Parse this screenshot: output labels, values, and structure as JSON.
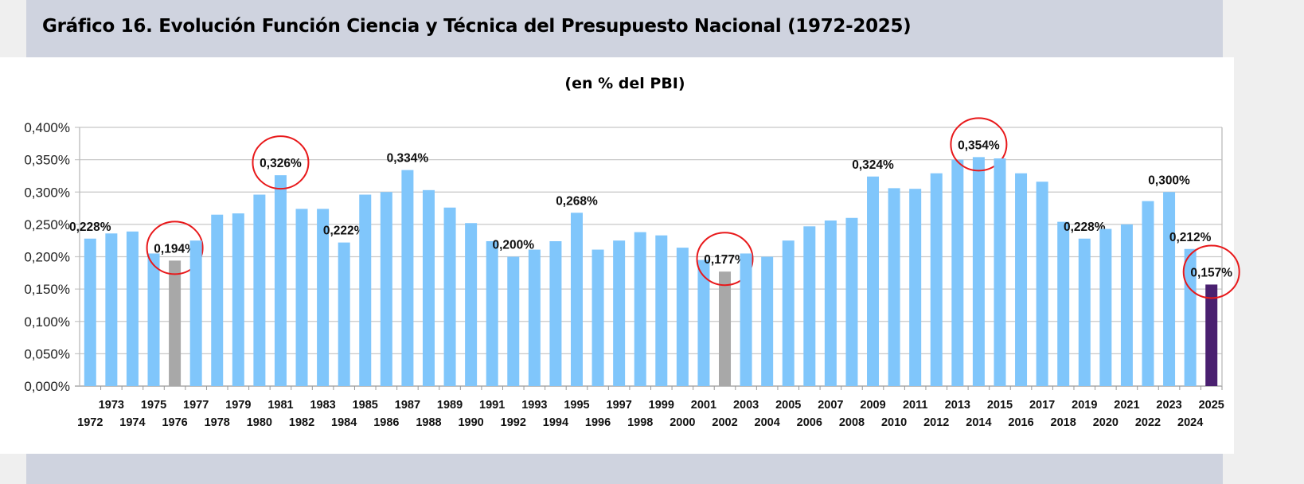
{
  "title": "Gráfico 16. Evolución Función Ciencia y Técnica del Presupuesto Nacional (1972-2025)",
  "chart_data": {
    "type": "bar",
    "title": "Gráfico 16. Evolución Función Ciencia y Técnica del Presupuesto Nacional (1972-2025)",
    "subtitle": "(en % del PBI)",
    "xlabel": "",
    "ylabel": "",
    "ylim": [
      0,
      0.4
    ],
    "yticks": [
      "0,000%",
      "0,050%",
      "0,100%",
      "0,150%",
      "0,200%",
      "0,250%",
      "0,300%",
      "0,350%",
      "0,400%"
    ],
    "grid": true,
    "categories": [
      "1972",
      "1973",
      "1974",
      "1975",
      "1976",
      "1977",
      "1978",
      "1979",
      "1980",
      "1981",
      "1982",
      "1983",
      "1984",
      "1985",
      "1986",
      "1987",
      "1988",
      "1989",
      "1990",
      "1991",
      "1992",
      "1993",
      "1994",
      "1995",
      "1996",
      "1997",
      "1998",
      "1999",
      "2000",
      "2001",
      "2002",
      "2003",
      "2004",
      "2005",
      "2006",
      "2007",
      "2008",
      "2009",
      "2010",
      "2011",
      "2012",
      "2013",
      "2014",
      "2015",
      "2016",
      "2017",
      "2018",
      "2019",
      "2020",
      "2021",
      "2022",
      "2023",
      "2024",
      "2025"
    ],
    "values": [
      0.228,
      0.236,
      0.239,
      0.205,
      0.194,
      0.225,
      0.265,
      0.267,
      0.296,
      0.326,
      0.274,
      0.274,
      0.222,
      0.296,
      0.3,
      0.334,
      0.303,
      0.276,
      0.252,
      0.224,
      0.2,
      0.211,
      0.224,
      0.268,
      0.211,
      0.225,
      0.238,
      0.233,
      0.214,
      0.195,
      0.177,
      0.205,
      0.2,
      0.225,
      0.247,
      0.256,
      0.26,
      0.324,
      0.306,
      0.305,
      0.329,
      0.35,
      0.354,
      0.352,
      0.329,
      0.316,
      0.254,
      0.228,
      0.243,
      0.25,
      0.286,
      0.3,
      0.212,
      0.157
    ],
    "data_labels": {
      "1972": "0,228%",
      "1976": "0,194%",
      "1981": "0,326%",
      "1984": "0,222%",
      "1987": "0,334%",
      "1992": "0,200%",
      "1995": "0,268%",
      "2002": "0,177%",
      "2009": "0,324%",
      "2014": "0,354%",
      "2019": "0,228%",
      "2023": "0,300%",
      "2024": "0,212%",
      "2025": "0,157%"
    },
    "highlighted_circled": [
      "1976",
      "1981",
      "2002",
      "2014",
      "2025"
    ],
    "bar_colors": {
      "default": "#80c6fb",
      "gray": "#a8a8a8",
      "current": "#4a2070"
    },
    "gray_years": [
      "1976",
      "2002"
    ],
    "current_year": "2025",
    "circle_color": "#e8191b"
  }
}
